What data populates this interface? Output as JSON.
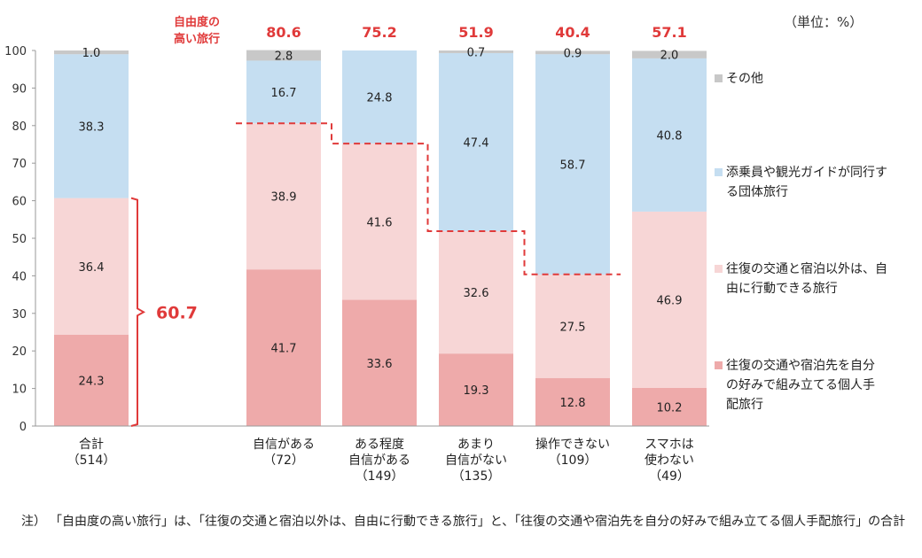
{
  "unit_label": "（単位：%）",
  "chart_data": {
    "type": "bar",
    "stacked": true,
    "ylim": [
      0,
      100
    ],
    "yticks": [
      0,
      10,
      20,
      30,
      40,
      50,
      60,
      70,
      80,
      90,
      100
    ],
    "categories": [
      {
        "lines": [
          "合計",
          "（514）"
        ]
      },
      {
        "lines": [
          "自信がある",
          "（72）"
        ]
      },
      {
        "lines": [
          "ある程度",
          "自信がある",
          "（149）"
        ]
      },
      {
        "lines": [
          "あまり",
          "自信がない",
          "（135）"
        ]
      },
      {
        "lines": [
          "操作できない",
          "（109）"
        ]
      },
      {
        "lines": [
          "スマホは",
          "使わない",
          "（49）"
        ]
      }
    ],
    "series": [
      {
        "name": "往復の交通や宿泊先を自分の好みで組み立てる個人手配旅行",
        "color": "#eeaaaa",
        "values": [
          24.3,
          41.7,
          33.6,
          19.3,
          12.8,
          10.2
        ]
      },
      {
        "name": "往復の交通と宿泊以外は、自由に行動できる旅行",
        "color": "#f7d6d6",
        "values": [
          36.4,
          38.9,
          41.6,
          32.6,
          27.5,
          46.9
        ]
      },
      {
        "name": "添乗員や観光ガイドが同行する団体旅行",
        "color": "#c5def1",
        "values": [
          38.3,
          16.7,
          24.8,
          47.4,
          58.7,
          40.8
        ]
      },
      {
        "name": "その他",
        "color": "#c8c8c8",
        "values": [
          1.0,
          2.8,
          0.0,
          0.7,
          0.9,
          2.0
        ]
      }
    ],
    "data_labels": [
      [
        "24.3",
        "41.7",
        "33.6",
        "19.3",
        "12.8",
        "10.2"
      ],
      [
        "36.4",
        "38.9",
        "41.6",
        "32.6",
        "27.5",
        "46.9"
      ],
      [
        "38.3",
        "16.7",
        "24.8",
        "47.4",
        "58.7",
        "40.8"
      ],
      [
        "1.0",
        "2.8",
        "",
        "0.7",
        "0.9",
        "2.0"
      ]
    ],
    "high_freedom_title": [
      "自由度の",
      "高い旅行"
    ],
    "high_freedom_values": [
      "",
      "80.6",
      "75.2",
      "51.9",
      "40.4",
      "57.1"
    ],
    "high_freedom_numeric": [
      60.7,
      80.6,
      75.2,
      51.9,
      40.4,
      57.1
    ],
    "total_annotation": "60.7",
    "accent_color": "#e03a3a"
  },
  "legend": [
    {
      "lines": [
        "その他"
      ],
      "color": "#c8c8c8"
    },
    {
      "lines": [
        "添乗員や観光ガイドが同行す",
        "る団体旅行"
      ],
      "color": "#c5def1"
    },
    {
      "lines": [
        "往復の交通と宿泊以外は、自",
        "由に行動できる旅行"
      ],
      "color": "#f7d6d6"
    },
    {
      "lines": [
        "往復の交通や宿泊先を自分",
        "の好みで組み立てる個人手",
        "配旅行"
      ],
      "color": "#eeaaaa"
    }
  ],
  "note": {
    "prefix": "注）",
    "text": "「自由度の高い旅行」は、「往復の交通と宿泊以外は、自由に行動できる旅行」と、「往復の交通や宿泊先を自分の好みで組み立てる個人手配旅行」の合計"
  }
}
